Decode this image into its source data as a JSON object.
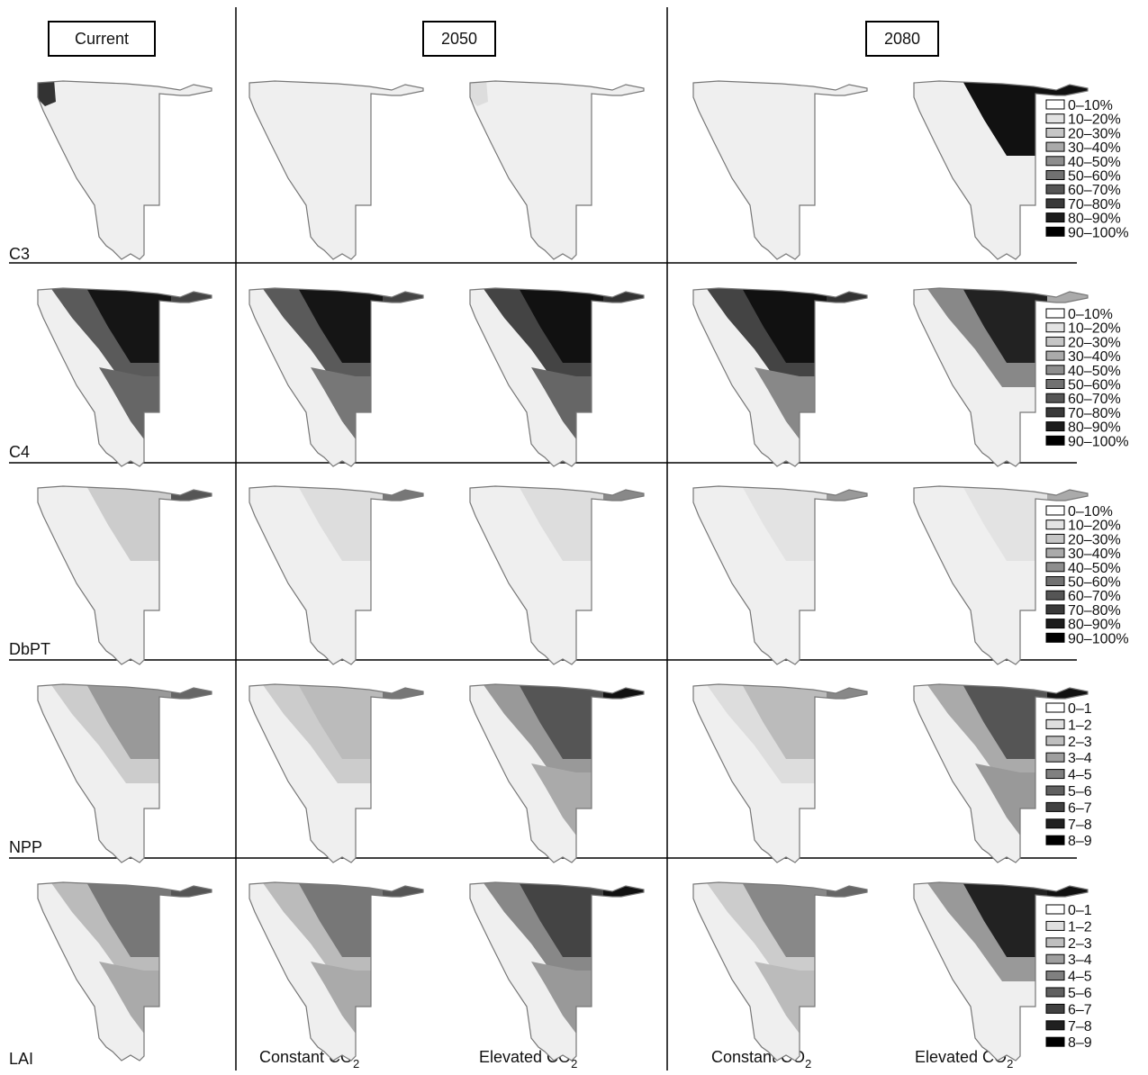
{
  "columns": [
    "Current",
    "2050",
    "2080"
  ],
  "rows": [
    "C3",
    "C4",
    "DbPT",
    "NPP",
    "LAI"
  ],
  "scenarios": [
    {
      "label": "Constant CO",
      "sub": "2"
    },
    {
      "label": "Elevated CO",
      "sub": "2"
    }
  ],
  "legends": {
    "percent": [
      "0–10%",
      "10–20%",
      "20–30%",
      "30–40%",
      "40–50%",
      "50–60%",
      "60–70%",
      "70–80%",
      "80–90%",
      "90–100%"
    ],
    "unit": [
      "0–1",
      "1–2",
      "2–3",
      "3–4",
      "4–5",
      "5–6",
      "6–7",
      "7–8",
      "8–9"
    ]
  }
}
